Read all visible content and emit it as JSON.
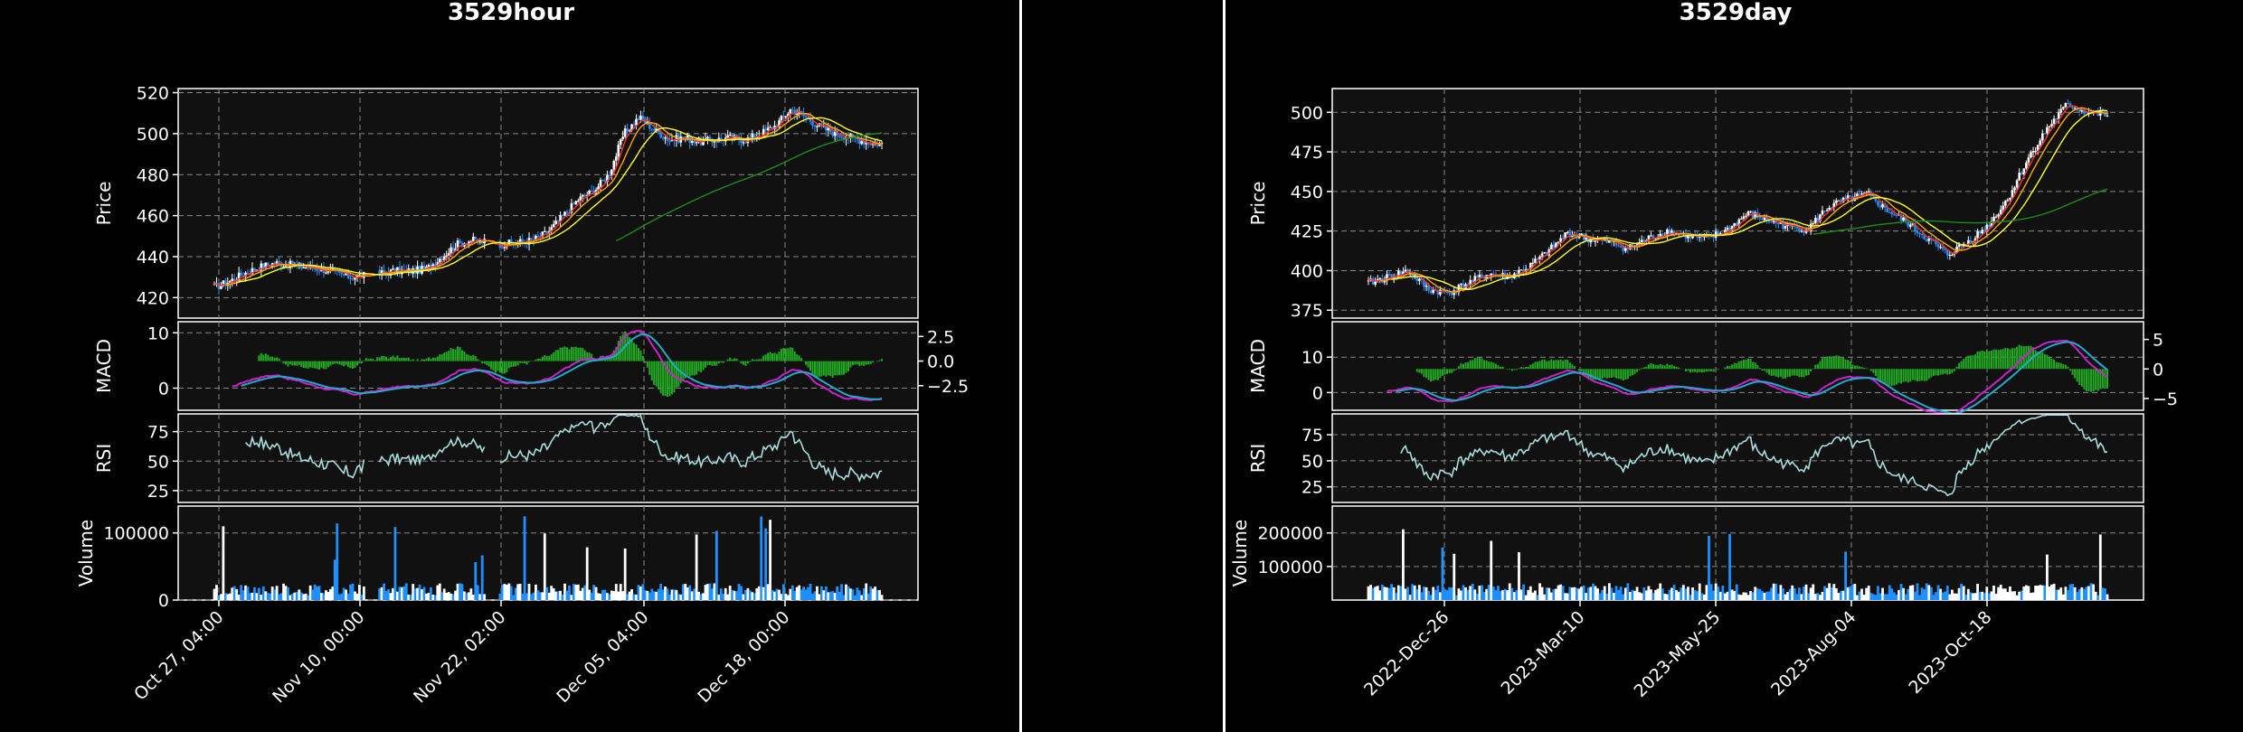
{
  "charts": [
    {
      "id": "hour",
      "title": "3529hour",
      "colors": {
        "up": "#ffffff",
        "down": "#1e90ff",
        "ma_fast": "#ff3030",
        "ma_mid": "#ffa500",
        "ma_slow": "#ffff33",
        "ma_long": "#1a8c1a",
        "macd": "#cc22cc",
        "signal": "#22aacc",
        "hist": "#22aa22",
        "rsi": "#aadddd",
        "vol_up": "#ffffff",
        "vol_down": "#1e90ff"
      },
      "x_tick_labels": [
        "Oct 27, 04:00",
        "Nov 10, 00:00",
        "Nov 22, 02:00",
        "Dec 05, 04:00",
        "Dec 18, 00:00"
      ],
      "price": {
        "ylabel": "Price",
        "ylim": [
          410,
          522
        ],
        "yticks": [
          "420",
          "440",
          "460",
          "480",
          "500",
          "520"
        ],
        "series": [
          425,
          428,
          432,
          435,
          437,
          436,
          435,
          434,
          432,
          430,
          431,
          432,
          433,
          433,
          434,
          440,
          446,
          448,
          447,
          446,
          447,
          448,
          452,
          460,
          468,
          472,
          480,
          500,
          508,
          502,
          497,
          498,
          496,
          497,
          498,
          497,
          500,
          504,
          512,
          508,
          503,
          500,
          498,
          496,
          495
        ],
        "gaps": [
          [
            10,
            11
          ],
          [
            18,
            19
          ]
        ]
      },
      "macd": {
        "ylabel": "MACD",
        "ylim": [
          -4,
          12
        ],
        "yticks": [
          "0",
          "10"
        ],
        "right_ylim": [
          -5,
          4
        ],
        "right_yticks": [
          "−2.5",
          "0.0",
          "2.5"
        ]
      },
      "rsi": {
        "ylabel": "RSI",
        "ylim": [
          15,
          90
        ],
        "yticks": [
          "25",
          "50",
          "75"
        ]
      },
      "volume": {
        "ylabel": "Volume",
        "ylim": [
          0,
          140000
        ],
        "yticks": [
          "0",
          "100000"
        ]
      }
    },
    {
      "id": "day",
      "title": "3529day",
      "colors": {
        "up": "#ffffff",
        "down": "#1e90ff",
        "ma_fast": "#ff3030",
        "ma_mid": "#ffa500",
        "ma_slow": "#ffff33",
        "ma_long": "#1a8c1a",
        "macd": "#cc22cc",
        "signal": "#22aacc",
        "hist": "#22aa22",
        "rsi": "#aadddd",
        "vol_up": "#ffffff",
        "vol_down": "#1e90ff"
      },
      "x_tick_labels": [
        "2022-Dec-26",
        "2023-Mar-10",
        "2023-May-25",
        "2023-Aug-04",
        "2023-Oct-18"
      ],
      "price": {
        "ylabel": "Price",
        "ylim": [
          370,
          515
        ],
        "yticks": [
          "375",
          "400",
          "425",
          "450",
          "475",
          "500"
        ],
        "series": [
          392,
          396,
          400,
          388,
          386,
          392,
          398,
          396,
          402,
          412,
          424,
          420,
          418,
          414,
          420,
          425,
          422,
          420,
          426,
          436,
          432,
          428,
          426,
          440,
          445,
          448,
          438,
          430,
          420,
          410,
          418,
          428,
          445,
          470,
          490,
          505,
          500,
          498
        ],
        "gaps": []
      },
      "macd": {
        "ylabel": "MACD",
        "ylim": [
          -5,
          20
        ],
        "yticks": [
          "0",
          "10"
        ],
        "right_ylim": [
          -7,
          8
        ],
        "right_yticks": [
          "−5",
          "0",
          "5"
        ]
      },
      "rsi": {
        "ylabel": "RSI",
        "ylim": [
          10,
          95
        ],
        "yticks": [
          "25",
          "50",
          "75"
        ]
      },
      "volume": {
        "ylabel": "Volume",
        "ylim": [
          0,
          280000
        ],
        "yticks": [
          "100000",
          "200000"
        ]
      }
    }
  ]
}
